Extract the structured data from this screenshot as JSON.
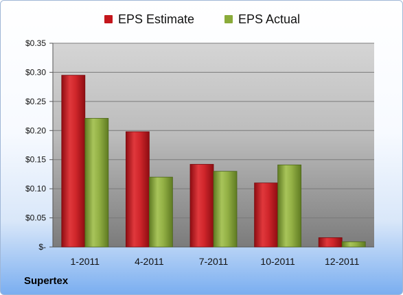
{
  "chart_data": {
    "type": "bar",
    "categories": [
      "1-2011",
      "4-2011",
      "7-2011",
      "10-2011",
      "12-2011"
    ],
    "series": [
      {
        "name": "EPS Estimate",
        "values": [
          0.295,
          0.198,
          0.142,
          0.11,
          0.016
        ],
        "color": "#c4161c"
      },
      {
        "name": "EPS Actual",
        "values": [
          0.221,
          0.12,
          0.13,
          0.141,
          0.009
        ],
        "color": "#8aab3a"
      }
    ],
    "ylim": [
      0,
      0.35
    ],
    "yticks": [
      0,
      0.05,
      0.1,
      0.15,
      0.2,
      0.25,
      0.3,
      0.35
    ],
    "ytick_labels": [
      "$-",
      "$0.05",
      "$0.10",
      "$0.15",
      "$0.20",
      "$0.25",
      "$0.30",
      "$0.35"
    ],
    "grid": true,
    "legend_position": "top",
    "xlabel": "",
    "ylabel": ""
  },
  "footer": {
    "company": "Supertex"
  }
}
